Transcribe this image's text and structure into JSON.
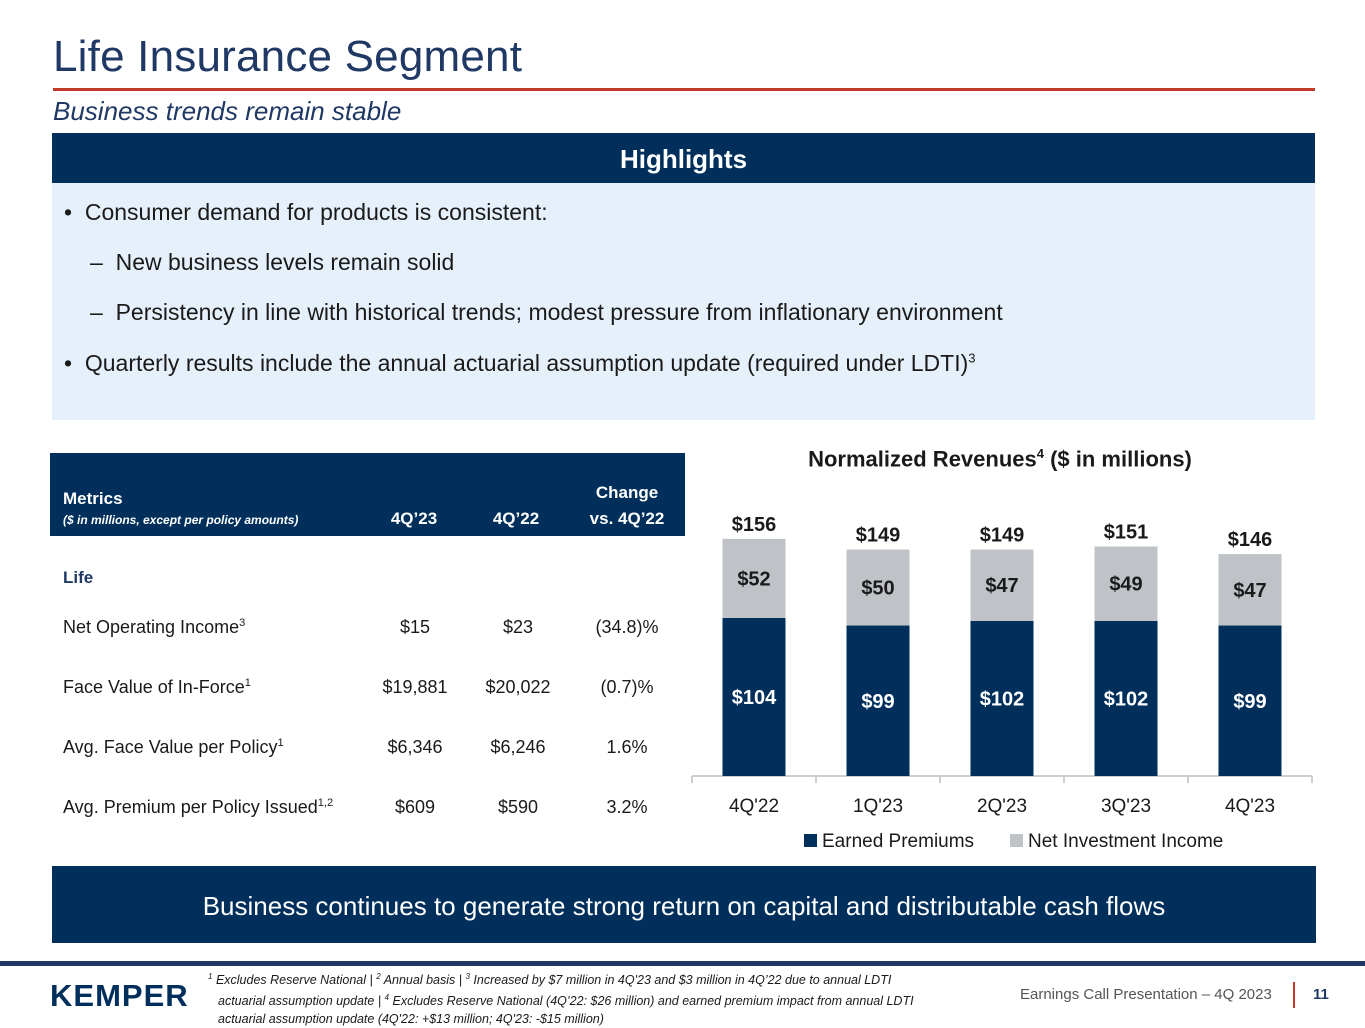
{
  "page": {
    "title": "Life Insurance Segment",
    "subtitle": "Business trends remain stable"
  },
  "highlights": {
    "header": "Highlights",
    "bullet1": "Consumer demand for products is consistent:",
    "sub1": "New business levels remain solid",
    "sub2": "Persistency in line with historical trends; modest pressure from inflationary environment",
    "bullet2": "Quarterly results include the annual actuarial assumption update (required under LDTI)",
    "bullet2_sup": "3",
    "bullet_glyph": "•",
    "dash_glyph": "–"
  },
  "table": {
    "metrics_label": "Metrics",
    "metrics_sub": "($ in millions, except per policy amounts)",
    "col1": "4Q’23",
    "col2": "4Q’22",
    "col3_line1": "Change",
    "col3_line2": "vs. 4Q’22",
    "section": "Life",
    "rows": [
      {
        "label": "Net Operating Income",
        "sup": "3",
        "v1": "$15",
        "v2": "$23",
        "chg": "(34.8)%"
      },
      {
        "label": "Face Value of In-Force",
        "sup": "1",
        "v1": "$19,881",
        "v2": "$20,022",
        "chg": "(0.7)%"
      },
      {
        "label": "Avg. Face Value per Policy",
        "sup": "1",
        "v1": "$6,346",
        "v2": "$6,246",
        "chg": "1.6%"
      },
      {
        "label": "Avg. Premium per Policy Issued",
        "sup": "1,2",
        "v1": "$609",
        "v2": "$590",
        "chg": "3.2%"
      }
    ]
  },
  "chart_data": {
    "type": "bar",
    "stacked": true,
    "title": "Normalized Revenues",
    "title_sup": "4",
    "title_suffix": " ($ in millions)",
    "categories": [
      "4Q'22",
      "1Q'23",
      "2Q'23",
      "3Q'23",
      "4Q'23"
    ],
    "series": [
      {
        "name": "Earned Premiums",
        "values": [
          104,
          99,
          102,
          102,
          99
        ],
        "labels": [
          "$104",
          "$99",
          "$102",
          "$102",
          "$99"
        ],
        "color": "#002f5c"
      },
      {
        "name": "Net Investment Income",
        "values": [
          52,
          50,
          47,
          49,
          47
        ],
        "labels": [
          "$52",
          "$50",
          "$47",
          "$49",
          "$47"
        ],
        "color": "#bfc3c8"
      }
    ],
    "totals": [
      "$156",
      "$149",
      "$149",
      "$151",
      "$146"
    ],
    "ylim": [
      0,
      160
    ],
    "legend": "bottom"
  },
  "footer": {
    "banner": "Business continues to generate strong return on capital and distributable cash flows",
    "logo": "KEMPER",
    "fn_line1_a": "Excludes Reserve National | ",
    "fn_line1_b": "Annual basis  | ",
    "fn_line1_c": "Increased by $7 million in 4Q'23 and $3 million in 4Q’22 due to annual LDTI",
    "fn_line2_a": "actuarial assumption update | ",
    "fn_line2_b": "Excludes Reserve National (4Q’22: $26 million) and earned premium impact from annual LDTI",
    "fn_line3": "actuarial assumption update (4Q'22: +$13 million; 4Q'23: -$15 million)",
    "fn_sup1": "1",
    "fn_sup2": "2",
    "fn_sup3": "3",
    "fn_sup4": "4",
    "presentation": "Earnings Call Presentation – 4Q 2023",
    "page_number": "11"
  },
  "colors": {
    "navy": "#002f5c",
    "grey": "#bfc3c8",
    "accent_red": "#c0392b"
  }
}
